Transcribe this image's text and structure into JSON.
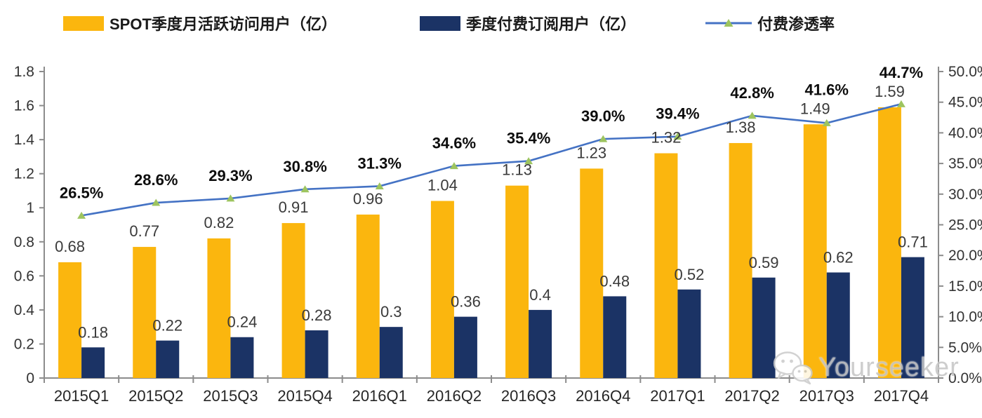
{
  "legend": {
    "items": [
      {
        "id": "mau",
        "label": "SPOT季度月活跃访问用户（亿）",
        "color": "#FBB60E",
        "type": "bar"
      },
      {
        "id": "paid",
        "label": "季度付费订阅用户（亿）",
        "color": "#1B3365",
        "type": "bar"
      },
      {
        "id": "pen",
        "label": "付费渗透率",
        "line_color": "#4472C4",
        "marker_color": "#9DC45F",
        "type": "line"
      }
    ]
  },
  "watermark": {
    "text": "Yourseeker",
    "icon": "wechat-icon"
  },
  "chart_data": {
    "type": "bar",
    "subtype": "bar+line combo, dual axis",
    "title": "",
    "xlabel": "",
    "ylabel": "",
    "grid": false,
    "legend_position": "top",
    "categories": [
      "2015Q1",
      "2015Q2",
      "2015Q3",
      "2015Q4",
      "2016Q1",
      "2016Q2",
      "2016Q3",
      "2016Q4",
      "2017Q1",
      "2017Q2",
      "2017Q3",
      "2017Q4"
    ],
    "series": [
      {
        "name": "SPOT季度月活跃访问用户（亿）",
        "kind": "bar",
        "axis": "left",
        "color": "#FBB60E",
        "values": [
          0.68,
          0.77,
          0.82,
          0.91,
          0.96,
          1.04,
          1.13,
          1.23,
          1.32,
          1.38,
          1.49,
          1.59
        ],
        "labels": [
          "0.68",
          "0.77",
          "0.82",
          "0.91",
          "0.96",
          "1.04",
          "1.13",
          "1.23",
          "1.32",
          "1.38",
          "1.49",
          "1.59"
        ]
      },
      {
        "name": "季度付费订阅用户（亿）",
        "kind": "bar",
        "axis": "left",
        "color": "#1B3365",
        "values": [
          0.18,
          0.22,
          0.24,
          0.28,
          0.3,
          0.36,
          0.4,
          0.48,
          0.52,
          0.59,
          0.62,
          0.71
        ],
        "labels": [
          "0.18",
          "0.22",
          "0.24",
          "0.28",
          "0.3",
          "0.36",
          "0.4",
          "0.48",
          "0.52",
          "0.59",
          "0.62",
          "0.71"
        ]
      },
      {
        "name": "付费渗透率",
        "kind": "line",
        "axis": "right",
        "color": "#4472C4",
        "marker": "triangle",
        "marker_color": "#9DC45F",
        "values": [
          26.5,
          28.6,
          29.3,
          30.8,
          31.3,
          34.6,
          35.4,
          39.0,
          39.4,
          42.8,
          41.6,
          44.7
        ],
        "labels": [
          "26.5%",
          "28.6%",
          "29.3%",
          "30.8%",
          "31.3%",
          "34.6%",
          "35.4%",
          "39.0%",
          "39.4%",
          "42.8%",
          "41.6%",
          "44.7%"
        ]
      }
    ],
    "left_axis": {
      "min": 0,
      "max": 1.8,
      "step": 0.2,
      "tick_labels": [
        "0",
        "0.2",
        "0.4",
        "0.6",
        "0.8",
        "1",
        "1.2",
        "1.4",
        "1.6",
        "1.8"
      ]
    },
    "right_axis": {
      "min": 0,
      "max": 50,
      "step": 5,
      "unit": "%",
      "tick_labels": [
        "0.0%",
        "5.0%",
        "10.0%",
        "15.0%",
        "20.0%",
        "25.0%",
        "30.0%",
        "35.0%",
        "40.0%",
        "45.0%",
        "50.0%"
      ]
    },
    "axis_color": "#8C8C8C",
    "label_color": "#333333"
  }
}
